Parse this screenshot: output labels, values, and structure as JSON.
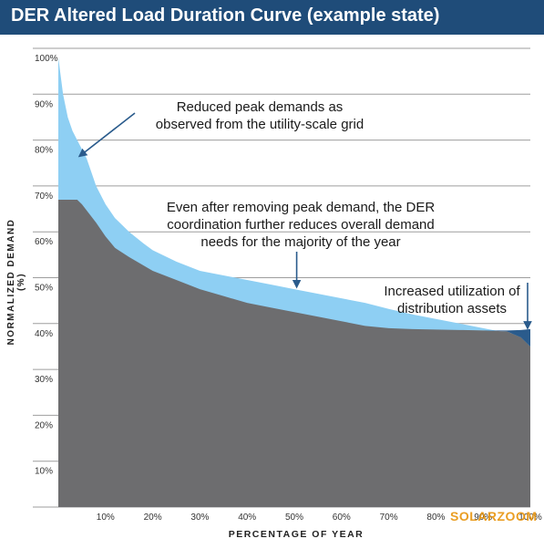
{
  "chart_data": {
    "type": "area",
    "title": "DER Altered Load Duration Curve (example state)",
    "xlabel": "PERCENTAGE OF YEAR",
    "ylabel": "NORMALIZED DEMAND (%)",
    "xlim": [
      0,
      100
    ],
    "ylim": [
      0,
      100
    ],
    "grid": true,
    "x_ticks": [
      "10%",
      "20%",
      "30%",
      "40%",
      "50%",
      "60%",
      "70%",
      "80%",
      "90%",
      "100%"
    ],
    "y_ticks": [
      "10%",
      "20%",
      "30%",
      "40%",
      "50%",
      "60%",
      "70%",
      "80%",
      "90%",
      "100%"
    ],
    "series": [
      {
        "color": "#8ecff3",
        "x": [
          0,
          1,
          2,
          3,
          4,
          5,
          6,
          7,
          8,
          10,
          12,
          15,
          18,
          20,
          25,
          30,
          35,
          40,
          45,
          50,
          55,
          60,
          65,
          70,
          75,
          80,
          85,
          90,
          95,
          98,
          100
        ],
        "y": [
          98,
          90,
          85,
          82,
          80,
          78,
          76,
          73,
          70,
          66,
          63,
          60,
          57.5,
          56,
          53.5,
          51.5,
          50.5,
          49.5,
          48.5,
          47.5,
          46.5,
          45.5,
          44.5,
          43.2,
          42,
          41,
          40,
          39,
          38,
          37.5,
          37
        ]
      },
      {
        "color": "#6d6d6f",
        "x": [
          0,
          4,
          5,
          8,
          10,
          12,
          15,
          20,
          25,
          30,
          35,
          40,
          45,
          50,
          55,
          60,
          65,
          70,
          75,
          80,
          85,
          90,
          95,
          98,
          100
        ],
        "y": [
          67,
          67,
          66,
          62,
          59,
          56.5,
          54.5,
          51.5,
          49.5,
          47.5,
          46,
          44.5,
          43.5,
          42.5,
          41.5,
          40.5,
          39.5,
          39,
          38.8,
          38.7,
          38.6,
          38.5,
          38.3,
          37,
          35
        ]
      },
      {
        "color": "#2a5b8c",
        "x": [
          90,
          95,
          98,
          100
        ],
        "y": [
          38.5,
          38.5,
          38.6,
          38.8
        ]
      }
    ],
    "annotations": [
      {
        "text": [
          "Reduced peak demands as",
          "observed from the utility-scale grid"
        ],
        "x": 4.5,
        "y": 76.5
      },
      {
        "text": [
          "Even after removing peak demand, the DER",
          "coordination further reduces overall demand",
          "needs for the majority of the year"
        ],
        "x": 50.5,
        "y": 48
      },
      {
        "text": [
          "Increased utilization of",
          "distribution assets"
        ],
        "x": 100,
        "y": 39
      }
    ],
    "watermark": "SOLARZOOM"
  },
  "colors": {
    "title_bar": "#1f4c79",
    "der_reduction_area": "#8ecff3",
    "altered_load_area": "#6d6d6f",
    "increased_utilization_area": "#2a5b8c",
    "arrow": "#2a5b8c",
    "grid": "#9e9e9e"
  }
}
